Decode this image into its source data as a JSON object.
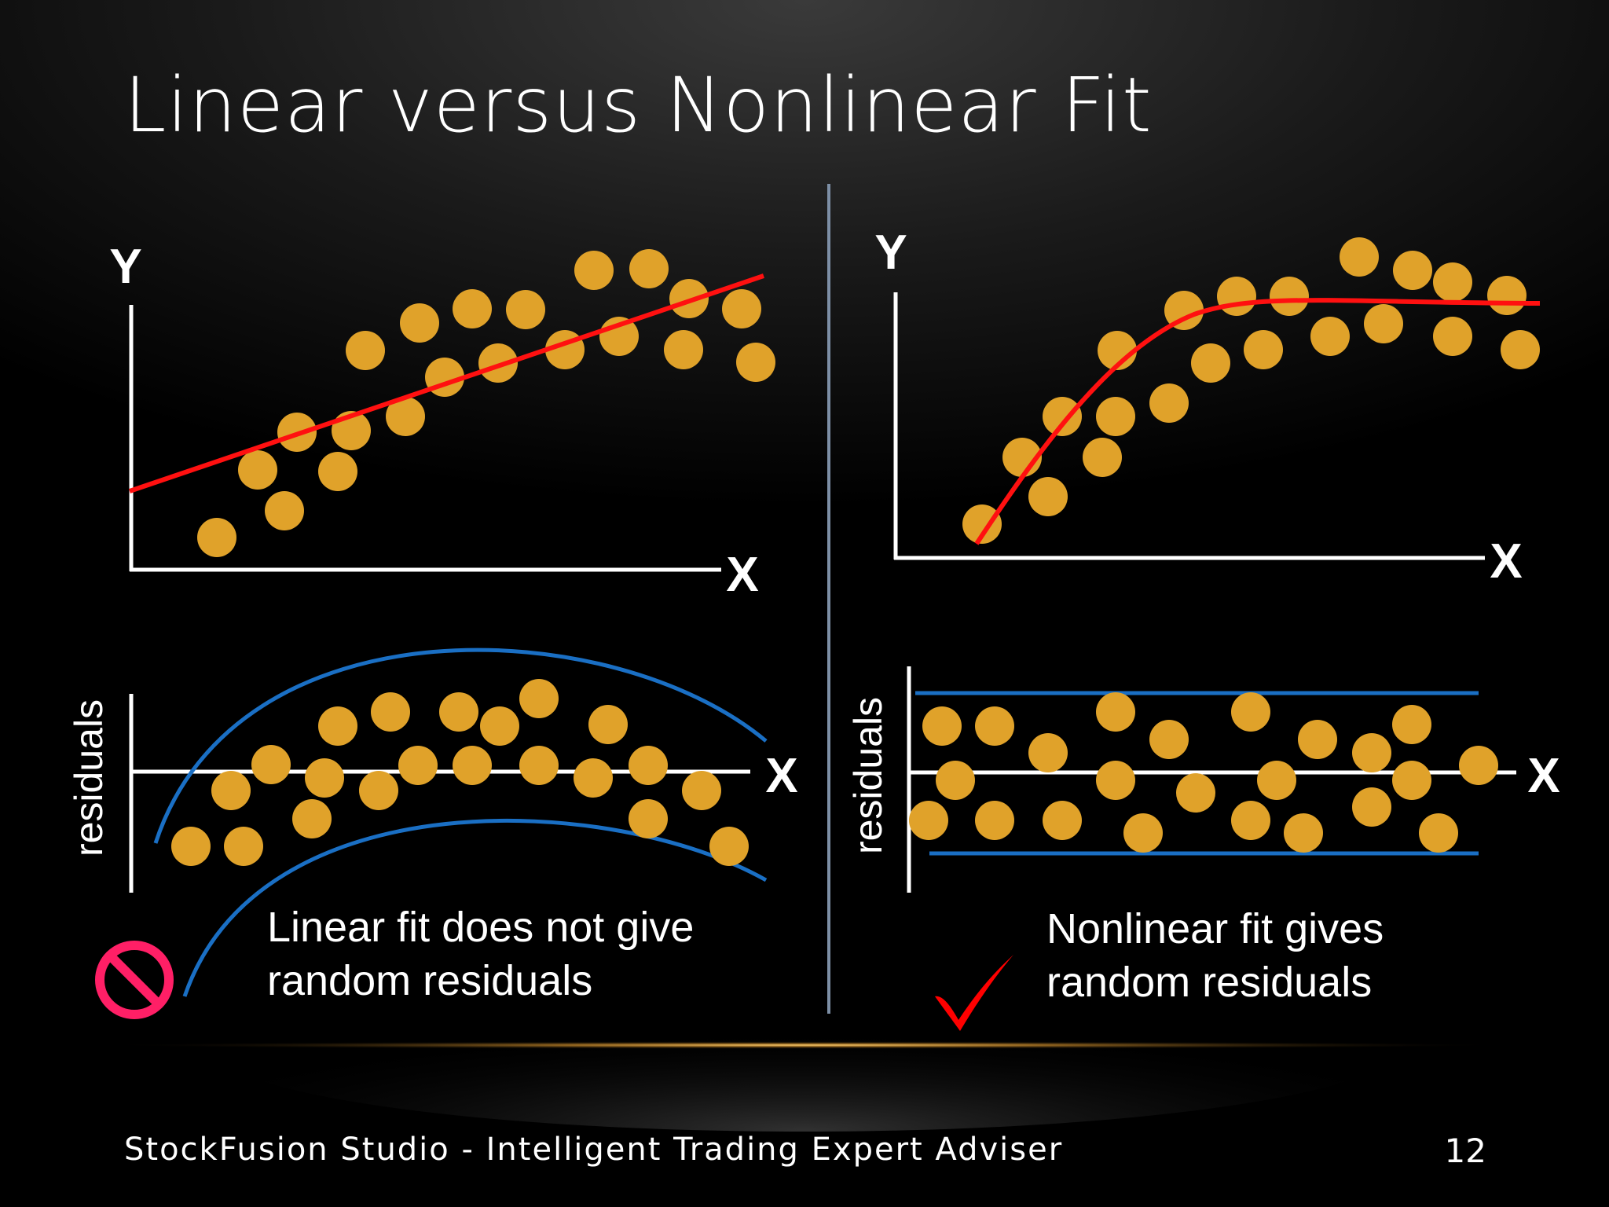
{
  "title": "Linear versus Nonlinear Fit",
  "footer": "StockFusion Studio - Intelligent Trading Expert Adviser",
  "page_number": "12",
  "colors": {
    "background": "#000000",
    "point": "#e0a22a",
    "fit_line": "#ff1010",
    "band": "#1a6fc4",
    "axis": "#ffffff",
    "divider": "#7d8fa6",
    "no_icon": "#ff1f66",
    "check_icon": "#ff0000"
  },
  "panels": {
    "linear": {
      "y_label": "Y",
      "x_label": "X",
      "residuals_label": "residuals",
      "residual_x_label": "X",
      "caption_line1": "Linear fit does not give",
      "caption_line2": "random residuals",
      "status_icon": "prohibited-icon"
    },
    "nonlinear": {
      "y_label": "Y",
      "x_label": "X",
      "residuals_label": "residuals",
      "residual_x_label": "X",
      "caption_line1": "Nonlinear fit gives",
      "caption_line2": "random residuals",
      "status_icon": "check-icon"
    }
  }
}
